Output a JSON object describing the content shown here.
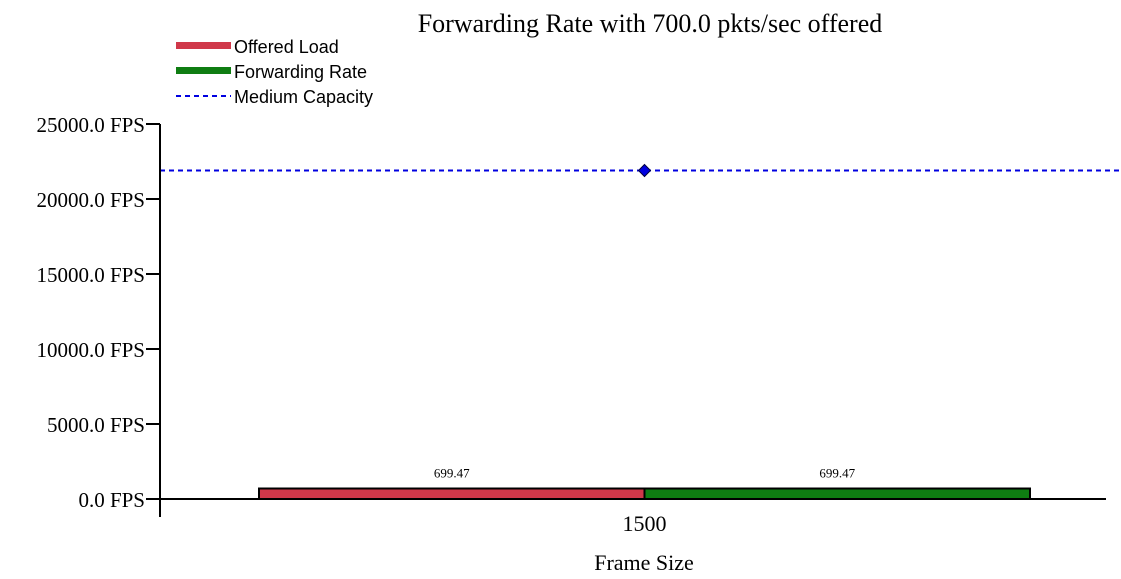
{
  "chart_data": {
    "type": "bar",
    "title": "Forwarding Rate with 700.0 pkts/sec offered",
    "xlabel": "Frame Size",
    "ylabel": "",
    "categories": [
      "1500"
    ],
    "series": [
      {
        "name": "Offered Load",
        "values": [
          699.47
        ],
        "labels": [
          "699.47"
        ],
        "color": "#d0384a"
      },
      {
        "name": "Forwarding Rate",
        "values": [
          699.47
        ],
        "labels": [
          "699.47"
        ],
        "color": "#0f7d12"
      }
    ],
    "reference_lines": [
      {
        "name": "Medium Capacity",
        "value": 21900,
        "color": "#0000e0",
        "style": "dashed",
        "marker": "diamond"
      }
    ],
    "ylim": [
      0,
      25000
    ],
    "yticks": [
      {
        "value": 0,
        "label": "0.0 FPS"
      },
      {
        "value": 5000,
        "label": "5000.0 FPS"
      },
      {
        "value": 10000,
        "label": "10000.0 FPS"
      },
      {
        "value": 15000,
        "label": "15000.0 FPS"
      },
      {
        "value": 20000,
        "label": "20000.0 FPS"
      },
      {
        "value": 25000,
        "label": "25000.0 FPS"
      }
    ],
    "grid": false,
    "legend_position": "top-left"
  }
}
